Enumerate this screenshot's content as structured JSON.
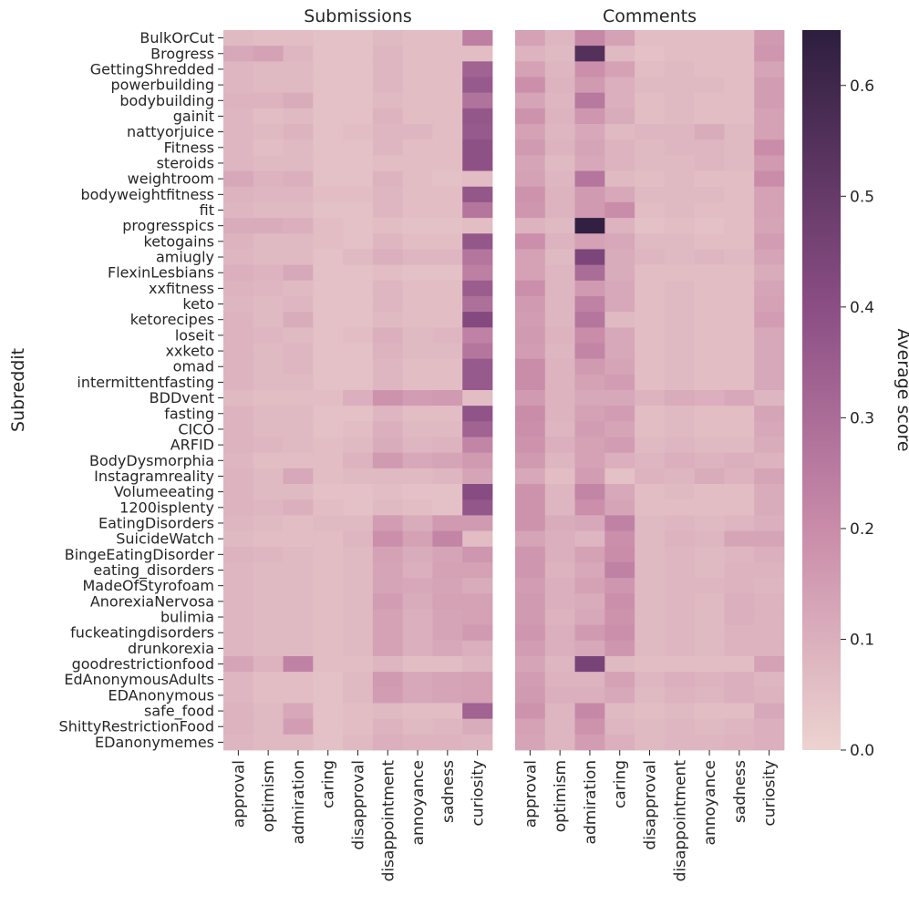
{
  "chart_data": {
    "type": "heatmap",
    "ylabel": "Subreddit",
    "colorbar": {
      "label": "Average score",
      "range": [
        0,
        0.65
      ],
      "ticks": [
        0.0,
        0.1,
        0.2,
        0.3,
        0.4,
        0.5,
        0.6
      ],
      "tick_labels": [
        "0.0",
        "0.1",
        "0.2",
        "0.3",
        "0.4",
        "0.5",
        "0.6"
      ],
      "color_low": "#ecd3d0",
      "color_mid": "#c98ba9",
      "color_high": "#2d1e3e"
    },
    "columns": [
      "approval",
      "optimism",
      "admiration",
      "caring",
      "disapproval",
      "disappointment",
      "annoyance",
      "sadness",
      "curiosity"
    ],
    "rows": [
      "BulkOrCut",
      "Brogress",
      "GettingShredded",
      "powerbuilding",
      "bodybuilding",
      "gainit",
      "nattyorjuice",
      "Fitness",
      "steroids",
      "weightroom",
      "bodyweightfitness",
      "fit",
      "progresspics",
      "ketogains",
      "amiugly",
      "FlexinLesbians",
      "xxfitness",
      "keto",
      "ketorecipes",
      "loseit",
      "xxketo",
      "omad",
      "intermittentfasting",
      "BDDvent",
      "fasting",
      "CICO",
      "ARFID",
      "BodyDysmorphia",
      "Instagramreality",
      "Volumeeating",
      "1200isplenty",
      "EatingDisorders",
      "SuicideWatch",
      "BingeEatingDisorder",
      "eating_disorders",
      "MadeOfStyrofoam",
      "AnorexiaNervosa",
      "bulimia",
      "fuckeatingdisorders",
      "drunkorexia",
      "goodrestrictionfood",
      "EdAnonymousAdults",
      "EDAnonymous",
      "safe_food",
      "ShittyRestrictionFood",
      "EDanonymemes"
    ],
    "panels": [
      {
        "title": "Submissions",
        "values": [
          [
            0.07,
            0.06,
            0.06,
            0.05,
            0.05,
            0.07,
            0.06,
            0.06,
            0.24
          ],
          [
            0.12,
            0.14,
            0.08,
            0.05,
            0.05,
            0.08,
            0.06,
            0.06,
            0.06
          ],
          [
            0.08,
            0.07,
            0.07,
            0.05,
            0.05,
            0.08,
            0.06,
            0.06,
            0.33
          ],
          [
            0.08,
            0.07,
            0.07,
            0.05,
            0.05,
            0.08,
            0.06,
            0.06,
            0.36
          ],
          [
            0.09,
            0.09,
            0.11,
            0.05,
            0.05,
            0.07,
            0.06,
            0.06,
            0.28
          ],
          [
            0.08,
            0.06,
            0.07,
            0.05,
            0.05,
            0.09,
            0.06,
            0.06,
            0.37
          ],
          [
            0.08,
            0.07,
            0.09,
            0.05,
            0.06,
            0.08,
            0.08,
            0.06,
            0.36
          ],
          [
            0.08,
            0.06,
            0.07,
            0.05,
            0.05,
            0.08,
            0.06,
            0.06,
            0.39
          ],
          [
            0.08,
            0.07,
            0.07,
            0.05,
            0.05,
            0.06,
            0.06,
            0.06,
            0.39
          ],
          [
            0.12,
            0.09,
            0.1,
            0.05,
            0.05,
            0.09,
            0.06,
            0.05,
            0.06
          ],
          [
            0.09,
            0.08,
            0.08,
            0.06,
            0.06,
            0.08,
            0.06,
            0.06,
            0.37
          ],
          [
            0.08,
            0.07,
            0.07,
            0.05,
            0.05,
            0.08,
            0.06,
            0.06,
            0.27
          ],
          [
            0.11,
            0.11,
            0.1,
            0.06,
            0.05,
            0.06,
            0.05,
            0.05,
            0.06
          ],
          [
            0.09,
            0.07,
            0.07,
            0.06,
            0.05,
            0.08,
            0.06,
            0.06,
            0.37
          ],
          [
            0.08,
            0.07,
            0.07,
            0.05,
            0.07,
            0.1,
            0.08,
            0.08,
            0.27
          ],
          [
            0.1,
            0.09,
            0.12,
            0.05,
            0.05,
            0.06,
            0.05,
            0.05,
            0.24
          ],
          [
            0.09,
            0.08,
            0.07,
            0.05,
            0.05,
            0.08,
            0.06,
            0.06,
            0.35
          ],
          [
            0.08,
            0.07,
            0.08,
            0.05,
            0.05,
            0.08,
            0.06,
            0.06,
            0.29
          ],
          [
            0.09,
            0.07,
            0.11,
            0.05,
            0.05,
            0.07,
            0.06,
            0.06,
            0.42
          ],
          [
            0.09,
            0.08,
            0.07,
            0.05,
            0.06,
            0.1,
            0.07,
            0.08,
            0.23
          ],
          [
            0.09,
            0.07,
            0.08,
            0.05,
            0.05,
            0.09,
            0.07,
            0.07,
            0.27
          ],
          [
            0.09,
            0.07,
            0.08,
            0.05,
            0.05,
            0.08,
            0.06,
            0.06,
            0.36
          ],
          [
            0.09,
            0.07,
            0.07,
            0.05,
            0.05,
            0.08,
            0.06,
            0.06,
            0.36
          ],
          [
            0.07,
            0.06,
            0.06,
            0.06,
            0.1,
            0.18,
            0.15,
            0.16,
            0.06
          ],
          [
            0.09,
            0.07,
            0.07,
            0.05,
            0.05,
            0.08,
            0.06,
            0.06,
            0.38
          ],
          [
            0.09,
            0.07,
            0.07,
            0.05,
            0.06,
            0.1,
            0.07,
            0.07,
            0.33
          ],
          [
            0.09,
            0.08,
            0.07,
            0.06,
            0.07,
            0.11,
            0.08,
            0.09,
            0.22
          ],
          [
            0.08,
            0.06,
            0.06,
            0.06,
            0.09,
            0.16,
            0.12,
            0.13,
            0.16
          ],
          [
            0.09,
            0.07,
            0.12,
            0.06,
            0.07,
            0.07,
            0.07,
            0.08,
            0.13
          ],
          [
            0.09,
            0.07,
            0.07,
            0.05,
            0.05,
            0.06,
            0.05,
            0.05,
            0.41
          ],
          [
            0.09,
            0.08,
            0.1,
            0.06,
            0.05,
            0.07,
            0.06,
            0.05,
            0.37
          ],
          [
            0.08,
            0.07,
            0.06,
            0.07,
            0.07,
            0.15,
            0.11,
            0.16,
            0.16
          ],
          [
            0.07,
            0.06,
            0.06,
            0.06,
            0.08,
            0.19,
            0.14,
            0.22,
            0.06
          ],
          [
            0.09,
            0.08,
            0.07,
            0.06,
            0.07,
            0.14,
            0.11,
            0.13,
            0.17
          ],
          [
            0.08,
            0.07,
            0.07,
            0.06,
            0.07,
            0.13,
            0.1,
            0.14,
            0.14
          ],
          [
            0.08,
            0.07,
            0.07,
            0.06,
            0.07,
            0.13,
            0.12,
            0.13,
            0.11
          ],
          [
            0.08,
            0.07,
            0.07,
            0.06,
            0.07,
            0.15,
            0.11,
            0.14,
            0.14
          ],
          [
            0.08,
            0.07,
            0.07,
            0.06,
            0.07,
            0.14,
            0.1,
            0.13,
            0.14
          ],
          [
            0.08,
            0.07,
            0.07,
            0.06,
            0.07,
            0.14,
            0.1,
            0.13,
            0.16
          ],
          [
            0.08,
            0.07,
            0.07,
            0.06,
            0.07,
            0.14,
            0.1,
            0.12,
            0.1
          ],
          [
            0.13,
            0.09,
            0.23,
            0.06,
            0.06,
            0.08,
            0.06,
            0.06,
            0.08
          ],
          [
            0.08,
            0.06,
            0.06,
            0.05,
            0.07,
            0.16,
            0.12,
            0.13,
            0.14
          ],
          [
            0.08,
            0.06,
            0.06,
            0.05,
            0.07,
            0.15,
            0.12,
            0.13,
            0.14
          ],
          [
            0.09,
            0.07,
            0.12,
            0.05,
            0.06,
            0.07,
            0.06,
            0.06,
            0.33
          ],
          [
            0.09,
            0.07,
            0.15,
            0.05,
            0.06,
            0.09,
            0.07,
            0.08,
            0.11
          ],
          [
            0.08,
            0.07,
            0.07,
            0.05,
            0.07,
            0.1,
            0.09,
            0.09,
            0.08
          ]
        ]
      },
      {
        "title": "Comments",
        "values": [
          [
            0.14,
            0.08,
            0.21,
            0.14,
            0.06,
            0.06,
            0.06,
            0.06,
            0.16
          ],
          [
            0.09,
            0.07,
            0.55,
            0.07,
            0.05,
            0.06,
            0.06,
            0.06,
            0.17
          ],
          [
            0.14,
            0.08,
            0.19,
            0.14,
            0.06,
            0.07,
            0.06,
            0.06,
            0.13
          ],
          [
            0.19,
            0.09,
            0.16,
            0.1,
            0.07,
            0.07,
            0.07,
            0.06,
            0.15
          ],
          [
            0.13,
            0.08,
            0.26,
            0.1,
            0.06,
            0.07,
            0.06,
            0.06,
            0.15
          ],
          [
            0.18,
            0.09,
            0.17,
            0.11,
            0.06,
            0.07,
            0.06,
            0.06,
            0.14
          ],
          [
            0.14,
            0.08,
            0.12,
            0.07,
            0.08,
            0.08,
            0.11,
            0.07,
            0.14
          ],
          [
            0.16,
            0.09,
            0.13,
            0.09,
            0.07,
            0.08,
            0.08,
            0.07,
            0.2
          ],
          [
            0.13,
            0.07,
            0.12,
            0.09,
            0.07,
            0.07,
            0.08,
            0.07,
            0.16
          ],
          [
            0.14,
            0.08,
            0.27,
            0.07,
            0.06,
            0.07,
            0.06,
            0.06,
            0.2
          ],
          [
            0.18,
            0.09,
            0.16,
            0.12,
            0.07,
            0.07,
            0.07,
            0.06,
            0.14
          ],
          [
            0.17,
            0.09,
            0.16,
            0.2,
            0.06,
            0.07,
            0.06,
            0.06,
            0.14
          ],
          [
            0.09,
            0.07,
            0.64,
            0.09,
            0.05,
            0.06,
            0.05,
            0.06,
            0.13
          ],
          [
            0.19,
            0.09,
            0.14,
            0.12,
            0.07,
            0.07,
            0.06,
            0.06,
            0.15
          ],
          [
            0.14,
            0.07,
            0.44,
            0.11,
            0.08,
            0.07,
            0.08,
            0.07,
            0.13
          ],
          [
            0.14,
            0.08,
            0.3,
            0.11,
            0.06,
            0.06,
            0.06,
            0.06,
            0.11
          ],
          [
            0.19,
            0.08,
            0.16,
            0.12,
            0.06,
            0.07,
            0.06,
            0.06,
            0.13
          ],
          [
            0.16,
            0.08,
            0.23,
            0.12,
            0.06,
            0.07,
            0.06,
            0.06,
            0.14
          ],
          [
            0.15,
            0.08,
            0.27,
            0.07,
            0.06,
            0.07,
            0.06,
            0.06,
            0.15
          ],
          [
            0.16,
            0.09,
            0.2,
            0.12,
            0.06,
            0.07,
            0.06,
            0.06,
            0.12
          ],
          [
            0.15,
            0.08,
            0.22,
            0.12,
            0.06,
            0.07,
            0.06,
            0.06,
            0.12
          ],
          [
            0.2,
            0.09,
            0.16,
            0.13,
            0.06,
            0.07,
            0.06,
            0.06,
            0.12
          ],
          [
            0.2,
            0.09,
            0.14,
            0.15,
            0.06,
            0.07,
            0.06,
            0.06,
            0.12
          ],
          [
            0.16,
            0.09,
            0.12,
            0.12,
            0.09,
            0.11,
            0.1,
            0.12,
            0.08
          ],
          [
            0.2,
            0.09,
            0.14,
            0.15,
            0.06,
            0.07,
            0.06,
            0.06,
            0.13
          ],
          [
            0.19,
            0.08,
            0.15,
            0.13,
            0.06,
            0.07,
            0.06,
            0.06,
            0.12
          ],
          [
            0.18,
            0.1,
            0.14,
            0.15,
            0.07,
            0.08,
            0.07,
            0.07,
            0.11
          ],
          [
            0.16,
            0.08,
            0.14,
            0.1,
            0.08,
            0.1,
            0.09,
            0.1,
            0.09
          ],
          [
            0.12,
            0.06,
            0.15,
            0.05,
            0.09,
            0.08,
            0.11,
            0.09,
            0.13
          ],
          [
            0.18,
            0.08,
            0.22,
            0.12,
            0.06,
            0.07,
            0.06,
            0.06,
            0.11
          ],
          [
            0.18,
            0.08,
            0.19,
            0.13,
            0.06,
            0.06,
            0.06,
            0.06,
            0.11
          ],
          [
            0.18,
            0.11,
            0.12,
            0.23,
            0.07,
            0.08,
            0.07,
            0.08,
            0.1
          ],
          [
            0.13,
            0.1,
            0.08,
            0.19,
            0.07,
            0.09,
            0.08,
            0.13,
            0.13
          ],
          [
            0.17,
            0.1,
            0.14,
            0.2,
            0.07,
            0.08,
            0.07,
            0.08,
            0.1
          ],
          [
            0.17,
            0.09,
            0.12,
            0.23,
            0.07,
            0.08,
            0.07,
            0.09,
            0.09
          ],
          [
            0.15,
            0.1,
            0.14,
            0.17,
            0.07,
            0.08,
            0.08,
            0.09,
            0.08
          ],
          [
            0.16,
            0.1,
            0.11,
            0.19,
            0.07,
            0.08,
            0.07,
            0.1,
            0.09
          ],
          [
            0.16,
            0.09,
            0.12,
            0.18,
            0.07,
            0.08,
            0.07,
            0.1,
            0.09
          ],
          [
            0.17,
            0.1,
            0.16,
            0.19,
            0.07,
            0.08,
            0.07,
            0.09,
            0.09
          ],
          [
            0.15,
            0.1,
            0.12,
            0.17,
            0.07,
            0.08,
            0.07,
            0.09,
            0.09
          ],
          [
            0.13,
            0.08,
            0.45,
            0.07,
            0.06,
            0.06,
            0.06,
            0.06,
            0.14
          ],
          [
            0.15,
            0.09,
            0.09,
            0.14,
            0.08,
            0.1,
            0.09,
            0.1,
            0.08
          ],
          [
            0.16,
            0.1,
            0.1,
            0.12,
            0.07,
            0.09,
            0.08,
            0.1,
            0.09
          ],
          [
            0.18,
            0.08,
            0.21,
            0.07,
            0.06,
            0.07,
            0.06,
            0.06,
            0.12
          ],
          [
            0.14,
            0.08,
            0.18,
            0.08,
            0.07,
            0.08,
            0.07,
            0.08,
            0.1
          ],
          [
            0.13,
            0.08,
            0.15,
            0.1,
            0.07,
            0.08,
            0.08,
            0.09,
            0.1
          ]
        ]
      }
    ]
  }
}
